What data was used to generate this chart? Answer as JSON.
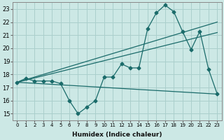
{
  "xlabel": "Humidex (Indice chaleur)",
  "xlim": [
    -0.5,
    23.5
  ],
  "ylim": [
    14.5,
    23.5
  ],
  "xticks": [
    0,
    1,
    2,
    3,
    4,
    5,
    6,
    7,
    8,
    9,
    10,
    11,
    12,
    13,
    14,
    15,
    16,
    17,
    18,
    19,
    20,
    21,
    22,
    23
  ],
  "yticks": [
    15,
    16,
    17,
    18,
    19,
    20,
    21,
    22,
    23
  ],
  "background_color": "#cce8e5",
  "grid_color": "#aacfcc",
  "line_color": "#1a6b6a",
  "main_series": {
    "x": [
      0,
      1,
      2,
      3,
      4,
      5,
      6,
      7,
      8,
      9,
      10,
      11,
      12,
      13,
      14,
      15,
      16,
      17,
      18,
      19,
      20,
      21,
      22,
      23
    ],
    "y": [
      17.4,
      17.7,
      17.5,
      17.5,
      17.5,
      17.3,
      16.0,
      15.0,
      15.5,
      16.0,
      17.8,
      17.8,
      18.8,
      18.5,
      18.5,
      21.5,
      22.7,
      23.3,
      22.8,
      21.3,
      19.9,
      21.3,
      18.4,
      16.5
    ]
  },
  "straight_lines": [
    {
      "x": [
        0,
        23
      ],
      "y": [
        17.4,
        22.0
      ]
    },
    {
      "x": [
        0,
        23
      ],
      "y": [
        17.4,
        21.2
      ]
    },
    {
      "x": [
        0,
        23
      ],
      "y": [
        17.4,
        16.5
      ]
    }
  ]
}
